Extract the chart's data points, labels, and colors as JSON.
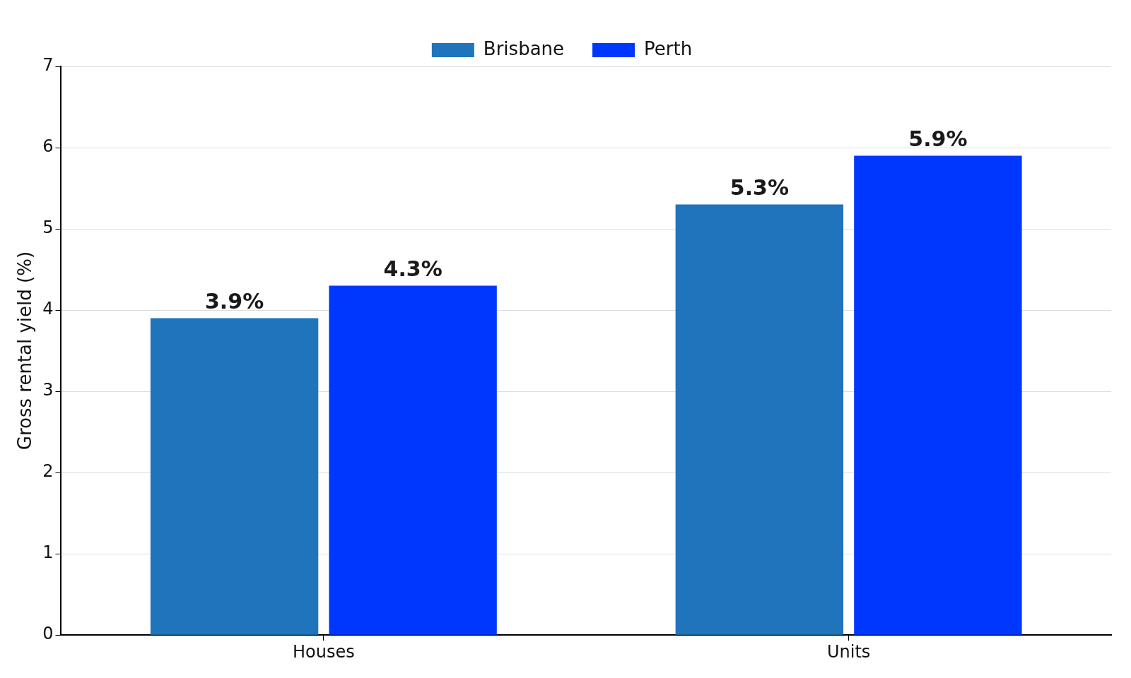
{
  "chart_data": {
    "type": "bar",
    "ylabel": "Gross rental yield (%)",
    "categories": [
      "Houses",
      "Units"
    ],
    "series": [
      {
        "name": "Brisbane",
        "color": "#1f74bb",
        "values": [
          3.9,
          5.3
        ],
        "value_labels": [
          "3.9%",
          "5.3%"
        ]
      },
      {
        "name": "Perth",
        "color": "#0037ff",
        "values": [
          4.3,
          5.9
        ],
        "value_labels": [
          "4.3%",
          "5.9%"
        ]
      }
    ],
    "ylim": [
      0,
      7
    ],
    "yticks": [
      0,
      1,
      2,
      3,
      4,
      5,
      6,
      7
    ],
    "grid": "y",
    "legend": "top"
  }
}
